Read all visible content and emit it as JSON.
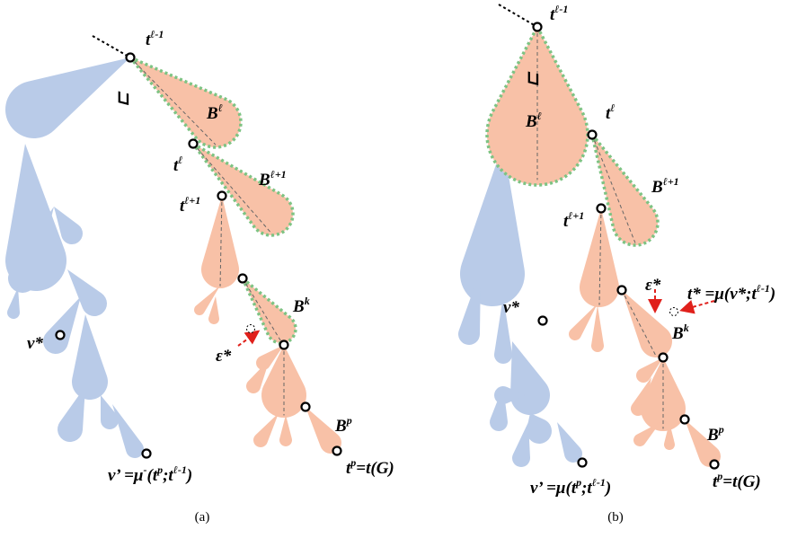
{
  "panel_a": {
    "labels": [
      [
        {
          "text": "t"
        },
        {
          "sup": "ℓ-1"
        }
      ],
      [
        {
          "text": "⊐"
        }
      ],
      [
        {
          "text": "B"
        },
        {
          "sup": "ℓ"
        }
      ],
      [
        {
          "text": "t"
        },
        {
          "sup": "ℓ"
        }
      ],
      [
        {
          "text": "B"
        },
        {
          "sup": "ℓ+1"
        }
      ],
      [
        {
          "text": "t"
        },
        {
          "sup": "ℓ+1"
        }
      ],
      [
        {
          "text": "B"
        },
        {
          "sup": "k"
        }
      ],
      [
        {
          "text": "ε*"
        }
      ],
      [
        {
          "text": "v*"
        }
      ],
      [
        {
          "text": "B"
        },
        {
          "sup": "p"
        }
      ],
      [
        {
          "text": "t"
        },
        {
          "sup": "p"
        },
        {
          "text": "=t(G)"
        }
      ],
      [
        {
          "text": "v’ =μ"
        },
        {
          "sup": "-"
        },
        {
          "text": "(t"
        },
        {
          "sup": "p"
        },
        {
          "text": ";t"
        },
        {
          "sup": "ℓ-1"
        },
        {
          "text": ")"
        }
      ]
    ],
    "caption": "(a)"
  },
  "panel_b": {
    "labels": [
      [
        {
          "text": "t"
        },
        {
          "sup": "ℓ-1"
        }
      ],
      [
        {
          "text": "⊐"
        }
      ],
      [
        {
          "text": "B"
        },
        {
          "sup": "ℓ"
        }
      ],
      [
        {
          "text": "t"
        },
        {
          "sup": "ℓ"
        }
      ],
      [
        {
          "text": "B"
        },
        {
          "sup": "ℓ+1"
        }
      ],
      [
        {
          "text": "t"
        },
        {
          "sup": "ℓ+1"
        }
      ],
      [
        {
          "text": "ε*"
        }
      ],
      [
        {
          "text": "t* =μ(v*;t"
        },
        {
          "sup": "ℓ-1"
        },
        {
          "text": ")"
        }
      ],
      [
        {
          "text": "v*"
        }
      ],
      [
        {
          "text": "B"
        },
        {
          "sup": "k"
        }
      ],
      [
        {
          "text": "B"
        },
        {
          "sup": "p"
        }
      ],
      [
        {
          "text": "t"
        },
        {
          "sup": "p"
        },
        {
          "text": "=t(G)"
        }
      ],
      [
        {
          "text": "v’ =μ(t"
        },
        {
          "sup": "p"
        },
        {
          "text": ";t"
        },
        {
          "sup": "ℓ-1"
        },
        {
          "text": ")"
        }
      ]
    ],
    "caption": "(b)"
  }
}
